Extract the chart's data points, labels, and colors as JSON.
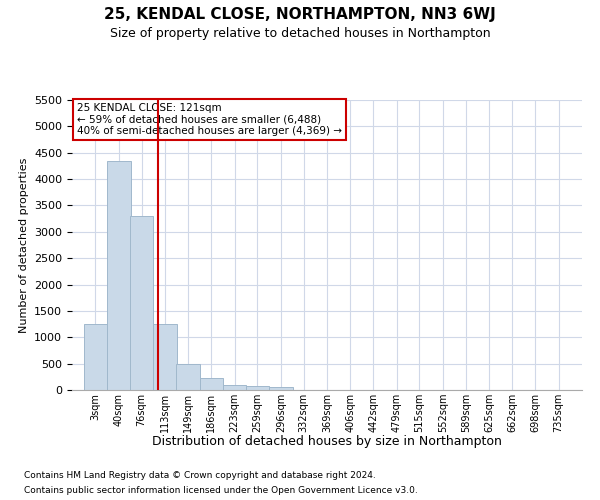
{
  "title": "25, KENDAL CLOSE, NORTHAMPTON, NN3 6WJ",
  "subtitle": "Size of property relative to detached houses in Northampton",
  "xlabel": "Distribution of detached houses by size in Northampton",
  "ylabel": "Number of detached properties",
  "footnote1": "Contains HM Land Registry data © Crown copyright and database right 2024.",
  "footnote2": "Contains public sector information licensed under the Open Government Licence v3.0.",
  "annotation_line1": "25 KENDAL CLOSE: 121sqm",
  "annotation_line2": "← 59% of detached houses are smaller (6,488)",
  "annotation_line3": "40% of semi-detached houses are larger (4,369) →",
  "bar_color": "#c9d9e8",
  "bar_edge_color": "#a0b8cc",
  "vline_color": "#cc0000",
  "vline_x": 121,
  "categories": [
    "3sqm",
    "40sqm",
    "76sqm",
    "113sqm",
    "149sqm",
    "186sqm",
    "223sqm",
    "259sqm",
    "296sqm",
    "332sqm",
    "369sqm",
    "406sqm",
    "442sqm",
    "479sqm",
    "515sqm",
    "552sqm",
    "589sqm",
    "625sqm",
    "662sqm",
    "698sqm",
    "735sqm"
  ],
  "bin_starts": [
    3,
    40,
    76,
    113,
    149,
    186,
    223,
    259,
    296,
    332,
    369,
    406,
    442,
    479,
    515,
    552,
    589,
    625,
    662,
    698,
    735
  ],
  "bin_width": 37,
  "values": [
    1250,
    4350,
    3300,
    1250,
    500,
    225,
    100,
    70,
    50,
    0,
    0,
    0,
    0,
    0,
    0,
    0,
    0,
    0,
    0,
    0,
    0
  ],
  "ylim": [
    0,
    5500
  ],
  "yticks": [
    0,
    500,
    1000,
    1500,
    2000,
    2500,
    3000,
    3500,
    4000,
    4500,
    5000,
    5500
  ],
  "grid_color": "#d0d8e8",
  "background_color": "#ffffff",
  "annotation_box_color": "#ffffff",
  "annotation_box_edge": "#cc0000",
  "title_fontsize": 11,
  "subtitle_fontsize": 9,
  "ylabel_fontsize": 8,
  "xlabel_fontsize": 9,
  "ytick_fontsize": 8,
  "xtick_fontsize": 7,
  "footnote_fontsize": 6.5
}
